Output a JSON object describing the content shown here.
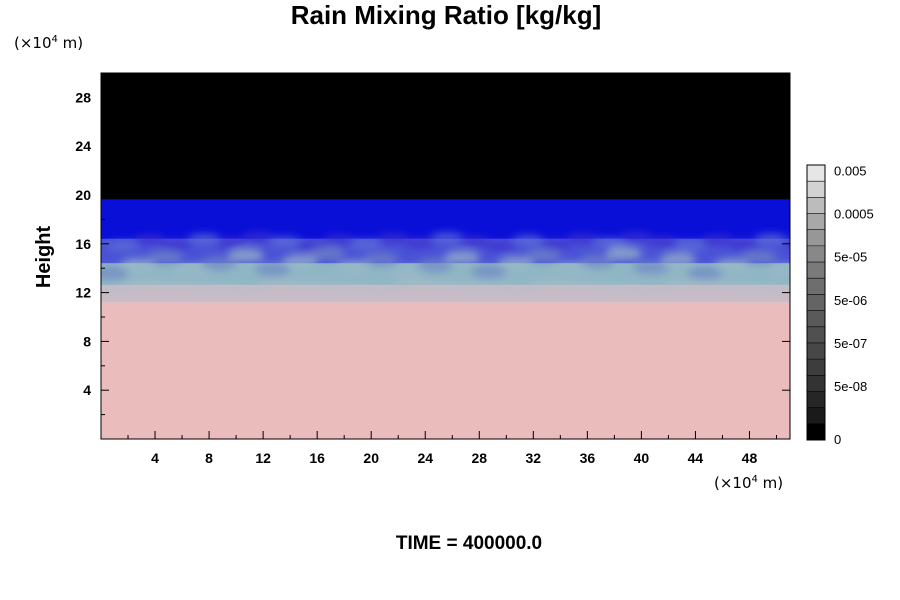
{
  "chart_data": {
    "type": "heatmap",
    "title": "Rain Mixing Ratio [kg/kg]",
    "ylabel": "Height",
    "y_unit": {
      "base": "(×10",
      "exp": "4",
      "suffix": " m)"
    },
    "x_unit": {
      "base": "(×10",
      "exp": "4",
      "suffix": " m)"
    },
    "xlim": [
      0,
      51
    ],
    "ylim": [
      0,
      30
    ],
    "x_ticks": [
      4,
      8,
      12,
      16,
      20,
      24,
      28,
      32,
      36,
      40,
      44,
      48
    ],
    "x_tick_labels": [
      "4",
      "8",
      "12",
      "16",
      "20",
      "24",
      "28",
      "32",
      "36",
      "40",
      "44",
      "48"
    ],
    "y_ticks": [
      4,
      8,
      12,
      16,
      20,
      24,
      28
    ],
    "y_tick_labels": [
      "4",
      "8",
      "12",
      "16",
      "20",
      "24",
      "28"
    ],
    "field_bands": [
      {
        "y_from": 0,
        "y_to": 11.2,
        "color": "#ebbcbc"
      },
      {
        "y_from": 11.2,
        "y_to": 12.6,
        "color": "#c9bcc6"
      },
      {
        "y_from": 12.6,
        "y_to": 14.4,
        "color": "#8fb6c4"
      },
      {
        "y_from": 14.4,
        "y_to": 16.4,
        "color": "#4a52d6"
      },
      {
        "y_from": 16.4,
        "y_to": 19.6,
        "color": "#0a0fd8"
      },
      {
        "y_from": 19.6,
        "y_to": 30,
        "color": "#000000"
      }
    ],
    "colorbar": {
      "levels": 17,
      "colors": [
        "#000000",
        "#1a1a1a",
        "#262626",
        "#333333",
        "#3d3d3d",
        "#474747",
        "#505050",
        "#5a5a5a",
        "#646464",
        "#6e6e6e",
        "#7a7a7a",
        "#888888",
        "#979797",
        "#a8a8a8",
        "#bcbcbc",
        "#d2d2d2",
        "#e6e6e6"
      ],
      "tick_labels": [
        "0",
        "5e-08",
        "5e-07",
        "5e-06",
        "5e-05",
        "0.0005",
        "0.005"
      ]
    },
    "footer": "TIME = 400000.0"
  }
}
